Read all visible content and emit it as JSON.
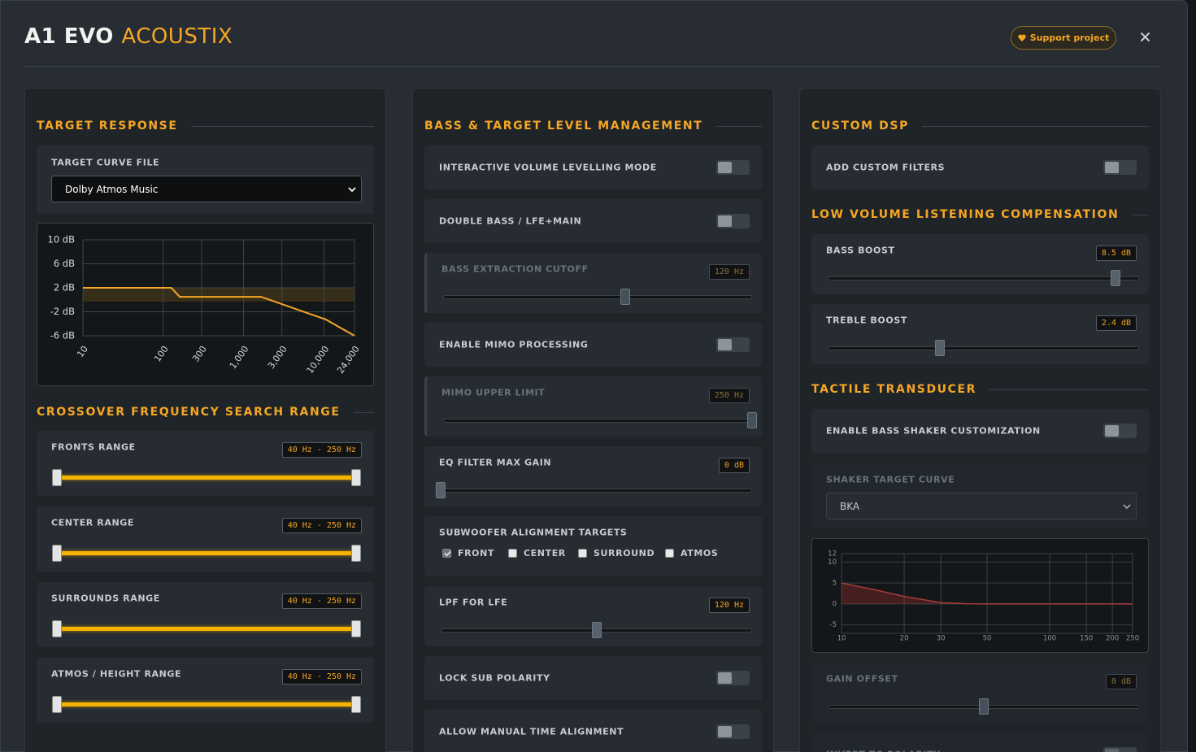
{
  "header": {
    "title": "A1 EVO",
    "title_accent": "ACOUSTIX",
    "support_button": "Support project"
  },
  "columns": [
    {
      "sections": [
        {
          "title": "TARGET RESPONSE",
          "items": [
            {
              "type": "select",
              "label": "TARGET CURVE FILE",
              "value": "Dolby Atmos Music"
            },
            {
              "type": "chart",
              "chart_data": {
                "type": "line",
                "xlog": true,
                "fill": false,
                "color": "#f5a623",
                "x": [
                  10,
                  126,
                  160,
                  1650,
                  10600,
                  24000
                ],
                "values": [
                  2,
                  2,
                  0.5,
                  0.5,
                  -3.3,
                  -6
                ],
                "band": [
                  -0.3,
                  2
                ],
                "xlim": [
                  10,
                  24000
                ],
                "ylim": [
                  -6,
                  10
                ],
                "xticks": [
                  10,
                  100,
                  300,
                  {
                    "value": 1000,
                    "label": "1,000"
                  },
                  {
                    "value": 3000,
                    "label": "3,000"
                  },
                  {
                    "value": 10000,
                    "label": "10,000"
                  },
                  {
                    "value": 24000,
                    "label": "24,000"
                  }
                ],
                "yticks": [
                  {
                    "value": 10,
                    "label": "10 dB"
                  },
                  {
                    "value": 6,
                    "label": "6 dB"
                  },
                  {
                    "value": 2,
                    "label": "2 dB"
                  },
                  {
                    "value": -2,
                    "label": "-2 dB"
                  },
                  {
                    "value": -6,
                    "label": "-6 dB"
                  }
                ]
              }
            }
          ]
        },
        {
          "title": "CROSSOVER FREQUENCY SEARCH RANGE",
          "items": [
            {
              "type": "range",
              "label": "FRONTS RANGE",
              "value_label": "40 Hz - 250 Hz",
              "low": 40,
              "high": 250,
              "min": 40,
              "max": 250
            },
            {
              "type": "range",
              "label": "CENTER RANGE",
              "value_label": "40 Hz - 250 Hz",
              "low": 40,
              "high": 250,
              "min": 40,
              "max": 250
            },
            {
              "type": "range",
              "label": "SURROUNDS RANGE",
              "value_label": "40 Hz - 250 Hz",
              "low": 40,
              "high": 250,
              "min": 40,
              "max": 250
            },
            {
              "type": "range",
              "label": "ATMOS / HEIGHT RANGE",
              "value_label": "40 Hz - 250 Hz",
              "low": 40,
              "high": 250,
              "min": 40,
              "max": 250
            }
          ]
        }
      ]
    },
    {
      "sections": [
        {
          "title": "BASS & TARGET LEVEL MANAGEMENT",
          "items": [
            {
              "type": "toggle",
              "label": "INTERACTIVE VOLUME LEVELLING MODE",
              "on": false
            },
            {
              "type": "toggle",
              "label": "DOUBLE BASS / LFE+MAIN",
              "on": false
            },
            {
              "type": "slider",
              "label": "BASS EXTRACTION CUTOFF",
              "value": 120,
              "value_label": "120 Hz",
              "min": 20,
              "max": 190,
              "disabled": true
            },
            {
              "type": "toggle",
              "label": "ENABLE MIMO PROCESSING",
              "on": false
            },
            {
              "type": "slider",
              "label": "MIMO UPPER LIMIT",
              "value": 250,
              "value_label": "250 Hz",
              "min": 80,
              "max": 250,
              "disabled": true
            },
            {
              "type": "slider",
              "label": "EQ FILTER MAX GAIN",
              "value": 0,
              "value_label": "0 dB",
              "min": 0,
              "max": 6
            },
            {
              "type": "checkboxes",
              "label": "SUBWOOFER ALIGNMENT TARGETS",
              "options": [
                {
                  "label": "FRONT",
                  "checked": true,
                  "disabled": true
                },
                {
                  "label": "CENTER",
                  "checked": false
                },
                {
                  "label": "SURROUND",
                  "checked": false
                },
                {
                  "label": "ATMOS",
                  "checked": false
                }
              ]
            },
            {
              "type": "slider",
              "label": "LPF FOR LFE",
              "value": 120,
              "value_label": "120 Hz",
              "min": 40,
              "max": 200
            },
            {
              "type": "toggle",
              "label": "LOCK SUB POLARITY",
              "on": false
            },
            {
              "type": "toggle",
              "label": "ALLOW MANUAL TIME ALIGNMENT",
              "on": false
            }
          ]
        }
      ]
    },
    {
      "sections": [
        {
          "title": "CUSTOM DSP",
          "items": [
            {
              "type": "toggle",
              "label": "ADD CUSTOM FILTERS",
              "on": false
            }
          ]
        },
        {
          "title": "LOW VOLUME LISTENING COMPENSATION",
          "items": [
            {
              "type": "slider",
              "label": "BASS BOOST",
              "value": 8.5,
              "value_label": "8.5 dB",
              "min": -10,
              "max": 10
            },
            {
              "type": "slider",
              "label": "TREBLE BOOST",
              "value": 2.4,
              "value_label": "2.4 dB",
              "min": -3,
              "max": 12
            }
          ]
        },
        {
          "title": "TACTILE TRANSDUCER",
          "items": [
            {
              "type": "toggle",
              "label": "ENABLE BASS SHAKER CUSTOMIZATION",
              "on": false
            },
            {
              "type": "select",
              "label": "SHAKER TARGET CURVE",
              "value": "BKA",
              "disabled": true
            },
            {
              "type": "chart",
              "chart_data": {
                "type": "line",
                "xlog": true,
                "fill": true,
                "color": "#a83a3a",
                "x": [
                  10,
                  15,
                  20,
                  30,
                  40,
                  50,
                  100,
                  250
                ],
                "values": [
                  5,
                  3.2,
                  1.8,
                  0.3,
                  0.05,
                  0,
                  0,
                  0
                ],
                "xlim": [
                  10,
                  250
                ],
                "ylim": [
                  -7,
                  12
                ],
                "xticks": [
                  10,
                  20,
                  30,
                  50,
                  100,
                  150,
                  200,
                  250
                ],
                "yticks": [
                  12,
                  10,
                  5,
                  0,
                  -5
                ]
              }
            },
            {
              "type": "slider",
              "label": "GAIN OFFSET",
              "value": 0,
              "value_label": "0 dB",
              "min": -10,
              "max": 10,
              "disabled": true
            },
            {
              "type": "toggle",
              "label": "INVERT TG POLARITY",
              "on": false,
              "disabled": true
            }
          ]
        }
      ]
    }
  ]
}
